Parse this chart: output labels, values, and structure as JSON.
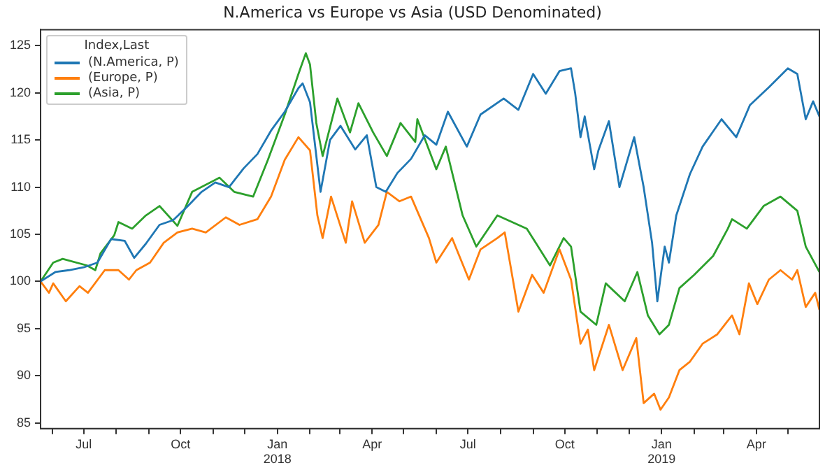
{
  "chart_data": {
    "type": "line",
    "title": "N.America vs Europe vs Asia (USD Denominated)",
    "legend_title": "Index,Last",
    "legend": "top left",
    "grid": false,
    "marker": "none",
    "line_style": "solid",
    "xlim": [
      "2017-05-21",
      "2019-05-31"
    ],
    "xticks": [
      {
        "value": "2017-06-01",
        "label": null
      },
      {
        "value": "2017-07-01",
        "label": "Jul"
      },
      {
        "value": "2017-08-01",
        "label": null
      },
      {
        "value": "2017-09-01",
        "label": null
      },
      {
        "value": "2017-10-01",
        "label": "Oct"
      },
      {
        "value": "2017-11-01",
        "label": null
      },
      {
        "value": "2017-12-01",
        "label": null
      },
      {
        "value": "2018-01-01",
        "label": "Jan\n2018"
      },
      {
        "value": "2018-02-01",
        "label": null
      },
      {
        "value": "2018-03-01",
        "label": null
      },
      {
        "value": "2018-04-01",
        "label": "Apr"
      },
      {
        "value": "2018-05-01",
        "label": null
      },
      {
        "value": "2018-06-01",
        "label": null
      },
      {
        "value": "2018-07-01",
        "label": "Jul"
      },
      {
        "value": "2018-08-01",
        "label": null
      },
      {
        "value": "2018-09-01",
        "label": null
      },
      {
        "value": "2018-10-01",
        "label": "Oct"
      },
      {
        "value": "2018-11-01",
        "label": null
      },
      {
        "value": "2018-12-01",
        "label": null
      },
      {
        "value": "2019-01-01",
        "label": "Jan\n2019"
      },
      {
        "value": "2019-02-01",
        "label": null
      },
      {
        "value": "2019-03-01",
        "label": null
      },
      {
        "value": "2019-04-01",
        "label": "Apr"
      },
      {
        "value": "2019-05-01",
        "label": null
      }
    ],
    "ylim": [
      84.4,
      126.7
    ],
    "yticks": [
      85,
      90,
      95,
      100,
      105,
      110,
      115,
      120,
      125
    ],
    "series": [
      {
        "name": "(N.America, P)",
        "color": "#1f77b4",
        "x": [
          "2017-05-21",
          "2017-06-04",
          "2017-06-17",
          "2017-07-01",
          "2017-07-14",
          "2017-07-27",
          "2017-08-09",
          "2017-08-18",
          "2017-08-29",
          "2017-09-11",
          "2017-09-24",
          "2017-10-08",
          "2017-10-21",
          "2017-11-03",
          "2017-11-16",
          "2017-11-30",
          "2017-12-13",
          "2017-12-26",
          "2018-01-08",
          "2018-01-21",
          "2018-01-25",
          "2018-02-01",
          "2018-02-11",
          "2018-02-20",
          "2018-03-02",
          "2018-03-16",
          "2018-03-27",
          "2018-04-05",
          "2018-04-14",
          "2018-04-25",
          "2018-05-08",
          "2018-05-21",
          "2018-06-01",
          "2018-06-12",
          "2018-06-30",
          "2018-07-13",
          "2018-08-04",
          "2018-08-18",
          "2018-09-01",
          "2018-09-13",
          "2018-09-26",
          "2018-10-07",
          "2018-10-11",
          "2018-10-16",
          "2018-10-20",
          "2018-10-29",
          "2018-11-02",
          "2018-11-12",
          "2018-11-22",
          "2018-12-06",
          "2018-12-15",
          "2018-12-23",
          "2018-12-28",
          "2019-01-04",
          "2019-01-08",
          "2019-01-15",
          "2019-01-28",
          "2019-02-09",
          "2019-02-27",
          "2019-03-13",
          "2019-03-26",
          "2019-04-13",
          "2019-05-01",
          "2019-05-10",
          "2019-05-18",
          "2019-05-25",
          "2019-05-31"
        ],
        "values": [
          100,
          101,
          101.2,
          101.5,
          102,
          104.5,
          104.3,
          102.5,
          104,
          106,
          106.5,
          108,
          109.5,
          110.5,
          110,
          112,
          113.5,
          116,
          118,
          120.5,
          121,
          119,
          109.5,
          115,
          116.5,
          114,
          115.5,
          110,
          109.5,
          111.5,
          113,
          115.5,
          114.5,
          118,
          114.3,
          117.7,
          119.4,
          118.2,
          122,
          119.9,
          122.3,
          122.6,
          119.9,
          115.3,
          117.5,
          111.9,
          113.9,
          117,
          110,
          115.3,
          110,
          104.1,
          97.9,
          103.7,
          102,
          107,
          111.4,
          114.3,
          117.2,
          115.3,
          118.7,
          120.6,
          122.6,
          122,
          117.2,
          119.1,
          117.5
        ]
      },
      {
        "name": "(Europe, P)",
        "color": "#ff7f0e",
        "x": [
          "2017-05-21",
          "2017-05-29",
          "2017-06-02",
          "2017-06-14",
          "2017-06-27",
          "2017-07-05",
          "2017-07-21",
          "2017-08-03",
          "2017-08-13",
          "2017-08-20",
          "2017-09-02",
          "2017-09-15",
          "2017-09-28",
          "2017-10-12",
          "2017-10-25",
          "2017-11-13",
          "2017-11-26",
          "2017-12-13",
          "2017-12-26",
          "2018-01-08",
          "2018-01-21",
          "2018-02-01",
          "2018-02-08",
          "2018-02-13",
          "2018-02-21",
          "2018-03-07",
          "2018-03-13",
          "2018-03-25",
          "2018-04-07",
          "2018-04-15",
          "2018-04-27",
          "2018-05-08",
          "2018-05-25",
          "2018-06-01",
          "2018-06-16",
          "2018-07-02",
          "2018-07-13",
          "2018-07-29",
          "2018-08-05",
          "2018-08-18",
          "2018-08-31",
          "2018-09-11",
          "2018-09-26",
          "2018-10-07",
          "2018-10-16",
          "2018-10-23",
          "2018-10-29",
          "2018-11-12",
          "2018-11-25",
          "2018-12-08",
          "2018-12-15",
          "2018-12-25",
          "2018-12-31",
          "2019-01-08",
          "2019-01-18",
          "2019-01-28",
          "2019-02-09",
          "2019-02-23",
          "2019-03-09",
          "2019-03-16",
          "2019-03-25",
          "2019-04-02",
          "2019-04-13",
          "2019-04-24",
          "2019-05-05",
          "2019-05-10",
          "2019-05-18",
          "2019-05-27",
          "2019-05-31"
        ],
        "values": [
          100,
          98.8,
          99.8,
          97.9,
          99.5,
          98.8,
          101.2,
          101.2,
          100.2,
          101.2,
          102,
          104.1,
          105.2,
          105.6,
          105.2,
          106.8,
          106,
          106.6,
          109,
          112.9,
          115.3,
          113.9,
          107,
          104.6,
          109,
          104.1,
          108.5,
          104.1,
          106,
          109.5,
          108.5,
          109,
          104.6,
          102,
          104.6,
          100.2,
          103.4,
          104.6,
          105.2,
          96.8,
          100.7,
          98.8,
          103.4,
          100.2,
          93.4,
          94.9,
          90.6,
          95.4,
          90.6,
          94,
          87.1,
          88.1,
          86.4,
          87.7,
          90.6,
          91.5,
          93.4,
          94.4,
          96.4,
          94.4,
          99.8,
          97.6,
          100.2,
          101.2,
          100.2,
          101.2,
          97.3,
          98.8,
          97
        ]
      },
      {
        "name": "(Asia, P)",
        "color": "#2ca02c",
        "x": [
          "2017-05-21",
          "2017-06-02",
          "2017-06-11",
          "2017-07-04",
          "2017-07-12",
          "2017-07-17",
          "2017-07-30",
          "2017-08-03",
          "2017-08-16",
          "2017-08-29",
          "2017-09-11",
          "2017-09-28",
          "2017-10-12",
          "2017-11-07",
          "2017-11-21",
          "2017-12-09",
          "2017-12-23",
          "2018-01-08",
          "2018-01-21",
          "2018-01-28",
          "2018-02-01",
          "2018-02-07",
          "2018-02-13",
          "2018-02-27",
          "2018-03-11",
          "2018-03-19",
          "2018-04-02",
          "2018-04-15",
          "2018-04-28",
          "2018-05-12",
          "2018-05-14",
          "2018-06-01",
          "2018-06-10",
          "2018-06-26",
          "2018-07-09",
          "2018-07-29",
          "2018-08-26",
          "2018-09-17",
          "2018-09-30",
          "2018-10-07",
          "2018-10-16",
          "2018-10-31",
          "2018-11-09",
          "2018-11-27",
          "2018-12-09",
          "2018-12-19",
          "2018-12-30",
          "2019-01-08",
          "2019-01-18",
          "2019-02-01",
          "2019-02-19",
          "2019-03-05",
          "2019-03-09",
          "2019-03-23",
          "2019-04-08",
          "2019-04-24",
          "2019-05-10",
          "2019-05-18",
          "2019-05-31"
        ],
        "values": [
          100,
          102,
          102.4,
          101.7,
          101.2,
          103,
          104.9,
          106.3,
          105.6,
          107,
          108,
          105.9,
          109.5,
          111,
          109.5,
          109,
          112.9,
          117.7,
          122,
          124.2,
          123,
          116.8,
          113.3,
          119.4,
          115.8,
          118.9,
          115.8,
          113.3,
          116.8,
          114.8,
          117.2,
          111.9,
          114.3,
          107,
          103.7,
          107,
          105.6,
          101.7,
          104.6,
          103.7,
          96.8,
          95.4,
          99.8,
          97.9,
          101,
          96.4,
          94.4,
          95.4,
          99.3,
          100.7,
          102.7,
          105.6,
          106.6,
          105.6,
          108,
          109,
          107.5,
          103.7,
          101
        ]
      }
    ]
  }
}
